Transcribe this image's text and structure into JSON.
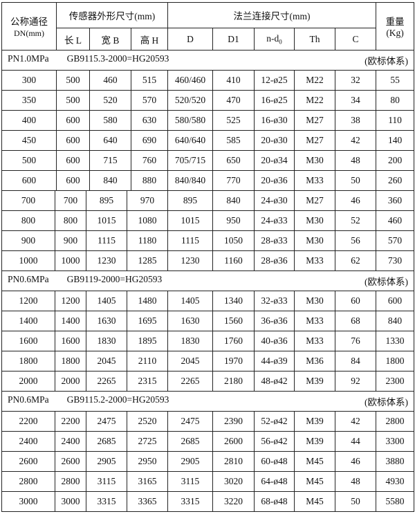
{
  "header": {
    "dn_label": "公称通径",
    "dn_unit": "DN(mm)",
    "sensor_group": "传感器外形尺寸(mm)",
    "flange_group": "法兰连接尺寸(mm)",
    "weight_label": "重量",
    "weight_unit": "(Kg)",
    "cols": [
      "长 L",
      "宽 B",
      "高 H",
      "D",
      "D1",
      "n-d",
      "Th",
      "C"
    ],
    "nd_sub": "0"
  },
  "sections": [
    {
      "pressure": "PN1.0MPa",
      "standard": "GB9115.3-2000=HG20593",
      "system": "(欧标体系)",
      "rows": [
        [
          "300",
          "500",
          "460",
          "515",
          "460/460",
          "410",
          "12-ø25",
          "M22",
          "32",
          "55"
        ],
        [
          "350",
          "500",
          "520",
          "570",
          "520/520",
          "470",
          "16-ø25",
          "M22",
          "34",
          "80"
        ],
        [
          "400",
          "600",
          "580",
          "630",
          "580/580",
          "525",
          "16-ø30",
          "M27",
          "38",
          "110"
        ],
        [
          "450",
          "600",
          "640",
          "690",
          "640/640",
          "585",
          "20-ø30",
          "M27",
          "42",
          "140"
        ],
        [
          "500",
          "600",
          "715",
          "760",
          "705/715",
          "650",
          "20-ø34",
          "M30",
          "48",
          "200"
        ],
        [
          "600",
          "600",
          "840",
          "880",
          "840/840",
          "770",
          "20-ø36",
          "M33",
          "50",
          "260"
        ],
        [
          "700",
          "700",
          "895",
          "970",
          "895",
          "840",
          "24-ø30",
          "M27",
          "46",
          "360"
        ],
        [
          "800",
          "800",
          "1015",
          "1080",
          "1015",
          "950",
          "24-ø33",
          "M30",
          "52",
          "460"
        ],
        [
          "900",
          "900",
          "1115",
          "1180",
          "1115",
          "1050",
          "28-ø33",
          "M30",
          "56",
          "570"
        ],
        [
          "1000",
          "1000",
          "1230",
          "1285",
          "1230",
          "1160",
          "28-ø36",
          "M33",
          "62",
          "730"
        ]
      ]
    },
    {
      "pressure": "PN0.6MPa",
      "standard": "GB9119-2000=HG20593",
      "system": "(欧标体系)",
      "rows": [
        [
          "1200",
          "1200",
          "1405",
          "1480",
          "1405",
          "1340",
          "32-ø33",
          "M30",
          "60",
          "600"
        ],
        [
          "1400",
          "1400",
          "1630",
          "1695",
          "1630",
          "1560",
          "36-ø36",
          "M33",
          "68",
          "840"
        ],
        [
          "1600",
          "1600",
          "1830",
          "1895",
          "1830",
          "1760",
          "40-ø36",
          "M33",
          "76",
          "1330"
        ],
        [
          "1800",
          "1800",
          "2045",
          "2110",
          "2045",
          "1970",
          "44-ø39",
          "M36",
          "84",
          "1800"
        ],
        [
          "2000",
          "2000",
          "2265",
          "2315",
          "2265",
          "2180",
          "48-ø42",
          "M39",
          "92",
          "2300"
        ]
      ]
    },
    {
      "pressure": "PN0.6MPa",
      "standard": "GB9115.2-2000=HG20593",
      "system": "(欧标体系)",
      "rows": [
        [
          "2200",
          "2200",
          "2475",
          "2520",
          "2475",
          "2390",
          "52-ø42",
          "M39",
          "42",
          "2800"
        ],
        [
          "2400",
          "2400",
          "2685",
          "2725",
          "2685",
          "2600",
          "56-ø42",
          "M39",
          "44",
          "3300"
        ],
        [
          "2600",
          "2600",
          "2905",
          "2950",
          "2905",
          "2810",
          "60-ø48",
          "M45",
          "46",
          "3880"
        ],
        [
          "2800",
          "2800",
          "3115",
          "3165",
          "3115",
          "3020",
          "64-ø48",
          "M45",
          "48",
          "4930"
        ],
        [
          "3000",
          "3000",
          "3315",
          "3365",
          "3315",
          "3220",
          "68-ø48",
          "M45",
          "50",
          "5580"
        ]
      ]
    }
  ]
}
